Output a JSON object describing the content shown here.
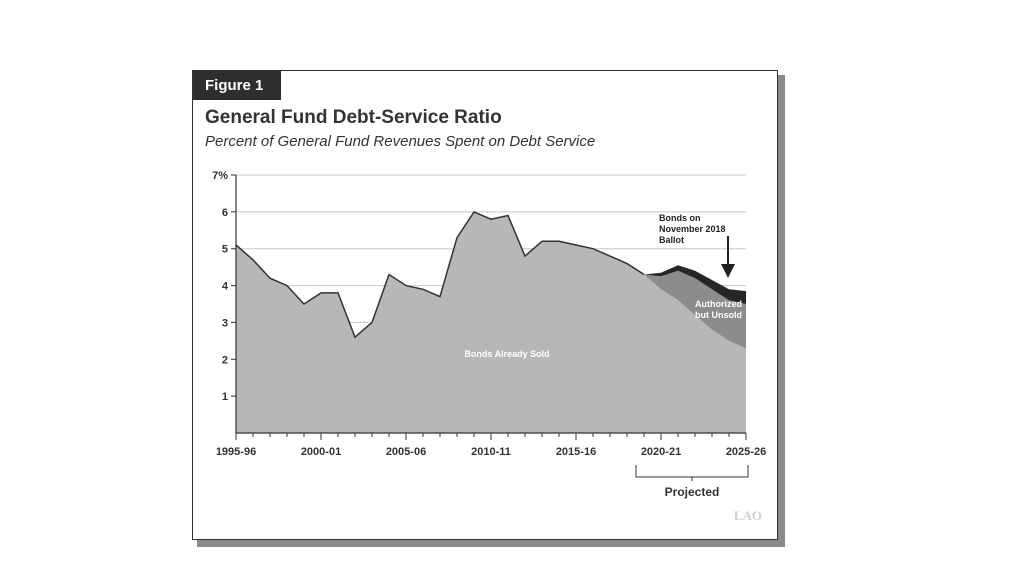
{
  "figure": {
    "tag": "Figure 1",
    "title": "General Fund Debt-Service Ratio",
    "subtitle": "Percent of General Fund Revenues Spent on Debt Service",
    "logo": "LAO"
  },
  "chart_data": {
    "type": "area",
    "title": "General Fund Debt-Service Ratio",
    "subtitle": "Percent of General Fund Revenues Spent on Debt Service",
    "xlabel": "",
    "ylabel": "",
    "stacked": true,
    "ylim": [
      0,
      7
    ],
    "y_ticks": [
      1,
      2,
      3,
      4,
      5,
      6,
      7
    ],
    "y_tick_labels": [
      "1",
      "2",
      "3",
      "4",
      "5",
      "6",
      "7%"
    ],
    "x_tick_labels": [
      "1995-96",
      "2000-01",
      "2005-06",
      "2010-11",
      "2015-16",
      "2020-21",
      "2025-26"
    ],
    "x": [
      "1995-96",
      "1996-97",
      "1997-98",
      "1998-99",
      "1999-00",
      "2000-01",
      "2001-02",
      "2002-03",
      "2003-04",
      "2004-05",
      "2005-06",
      "2006-07",
      "2007-08",
      "2008-09",
      "2009-10",
      "2010-11",
      "2011-12",
      "2012-13",
      "2013-14",
      "2014-15",
      "2015-16",
      "2016-17",
      "2017-18",
      "2018-19",
      "2019-20",
      "2020-21",
      "2021-22",
      "2022-23",
      "2023-24",
      "2024-25",
      "2025-26"
    ],
    "projected_label": "Projected",
    "projected_range": [
      "2019-20",
      "2025-26"
    ],
    "grid": true,
    "series": [
      {
        "name": "Bonds Already Sold",
        "color": "#b7b7b7",
        "values": [
          5.1,
          4.7,
          4.2,
          4.0,
          3.5,
          3.8,
          3.8,
          2.6,
          3.0,
          4.3,
          4.0,
          3.9,
          3.7,
          5.3,
          6.0,
          5.8,
          5.9,
          4.8,
          5.2,
          5.2,
          5.1,
          5.0,
          4.8,
          4.6,
          4.3,
          3.9,
          3.6,
          3.2,
          2.8,
          2.5,
          2.3
        ]
      },
      {
        "name": "Authorized but Unsold",
        "color": "#8c8c8c",
        "values": [
          0,
          0,
          0,
          0,
          0,
          0,
          0,
          0,
          0,
          0,
          0,
          0,
          0,
          0,
          0,
          0,
          0,
          0,
          0,
          0,
          0,
          0,
          0,
          0,
          0,
          0.35,
          0.8,
          1.0,
          1.1,
          1.1,
          1.2
        ]
      },
      {
        "name": "Bonds on November 2018 Ballot",
        "color": "#262626",
        "values": [
          0,
          0,
          0,
          0,
          0,
          0,
          0,
          0,
          0,
          0,
          0,
          0,
          0,
          0,
          0,
          0,
          0,
          0,
          0,
          0,
          0,
          0,
          0,
          0,
          0,
          0.1,
          0.15,
          0.2,
          0.25,
          0.3,
          0.35
        ]
      }
    ],
    "annotations": [
      {
        "text": [
          "Bonds on",
          "November 2018",
          "Ballot"
        ],
        "color": "#222222"
      },
      {
        "text": [
          "Authorized",
          "but Unsold"
        ],
        "color": "#ffffff"
      },
      {
        "text": [
          "Bonds Already Sold"
        ],
        "color": "#ffffff"
      }
    ]
  }
}
